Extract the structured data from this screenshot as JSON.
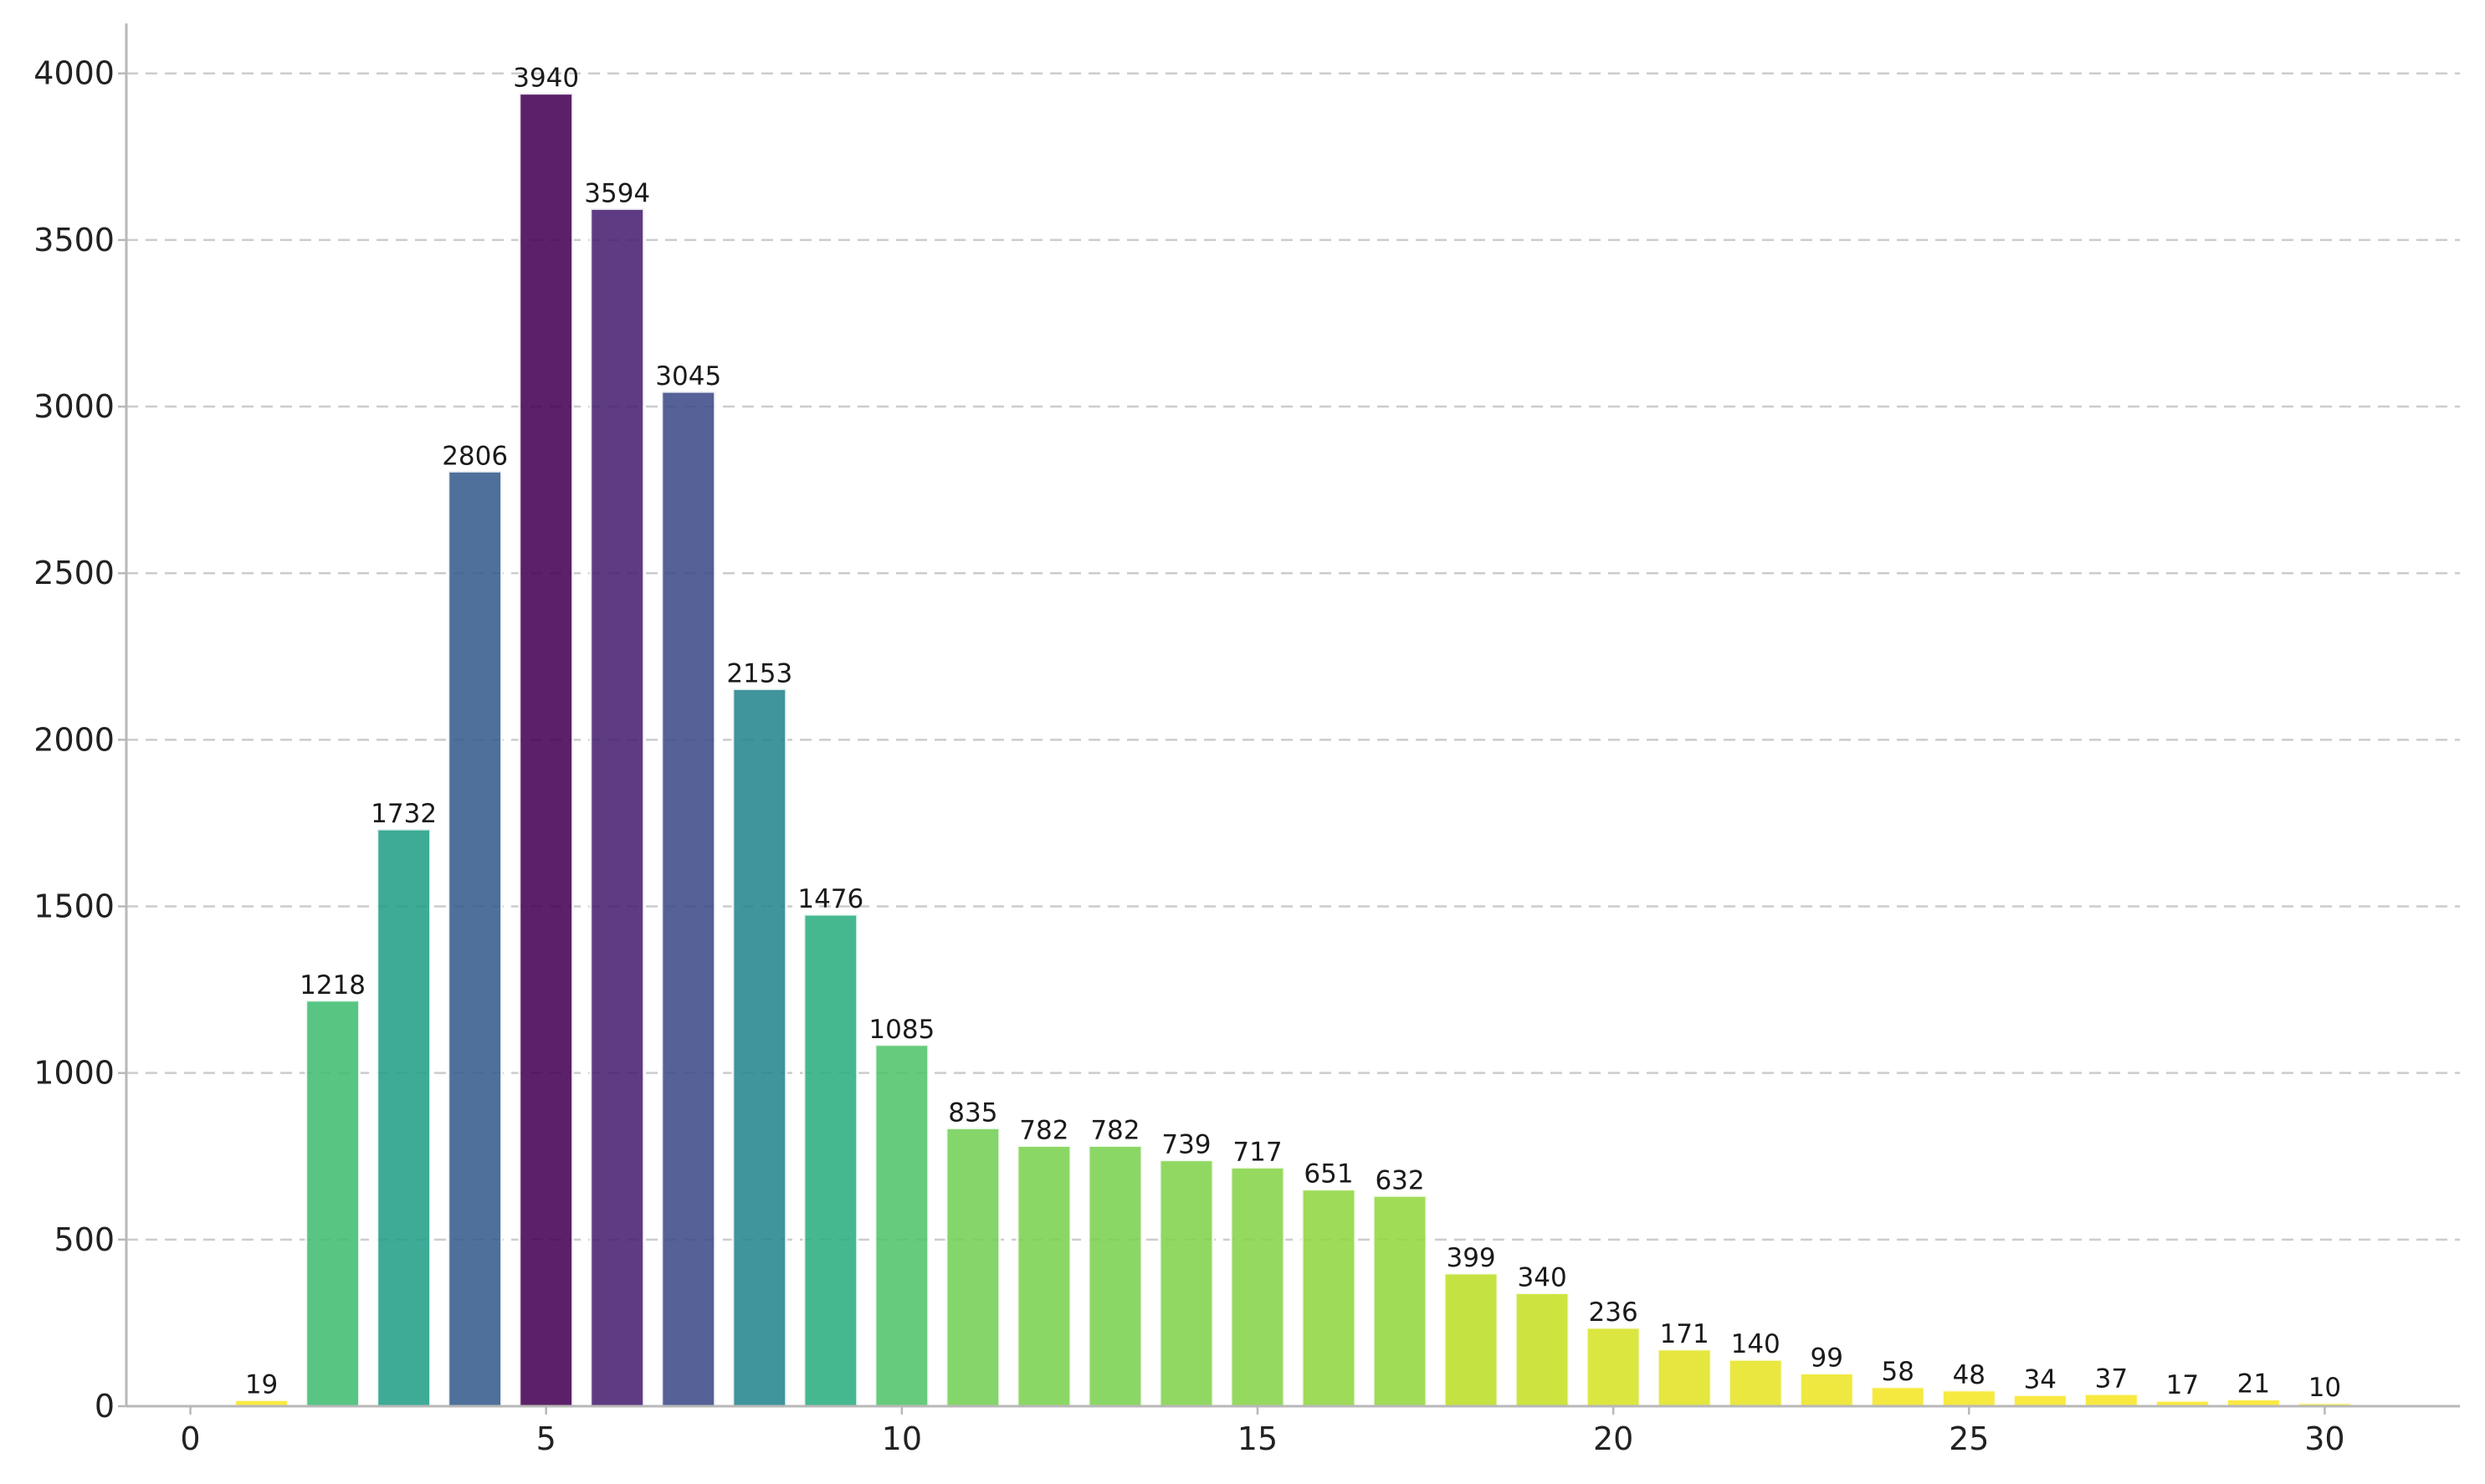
{
  "chart_data": {
    "type": "bar",
    "title": "",
    "xlabel": "",
    "ylabel": "",
    "x": [
      1,
      2,
      3,
      4,
      5,
      6,
      7,
      8,
      9,
      10,
      11,
      12,
      13,
      14,
      15,
      16,
      17,
      18,
      19,
      20,
      21,
      22,
      23,
      24,
      25,
      26,
      27,
      28,
      29,
      30
    ],
    "values": [
      19,
      1218,
      1732,
      2806,
      3940,
      3594,
      3045,
      2153,
      1476,
      1085,
      835,
      782,
      782,
      739,
      717,
      651,
      632,
      399,
      340,
      236,
      171,
      140,
      99,
      58,
      48,
      34,
      37,
      17,
      21,
      10
    ],
    "data_labels": [
      "19",
      "1218",
      "1732",
      "2806",
      "3940",
      "3594",
      "3045",
      "2153",
      "1476",
      "1085",
      "835",
      "782",
      "782",
      "739",
      "717",
      "651",
      "632",
      "399",
      "340",
      "236",
      "171",
      "140",
      "99",
      "58",
      "48",
      "34",
      "37",
      "17",
      "21",
      "10"
    ],
    "xlim": [
      -0.9,
      31.9
    ],
    "ylim": [
      0,
      4150
    ],
    "xticks": [
      0,
      5,
      10,
      15,
      20,
      25,
      30
    ],
    "xtick_labels": [
      "0",
      "5",
      "10",
      "15",
      "20",
      "25",
      "30"
    ],
    "yticks": [
      0,
      500,
      1000,
      1500,
      2000,
      2500,
      3000,
      3500,
      4000
    ],
    "ytick_labels": [
      "0",
      "500",
      "1000",
      "1500",
      "2000",
      "2500",
      "3000",
      "3500",
      "4000"
    ],
    "grid": "y-dashed",
    "legend": "none",
    "colormap": "viridis (reversed, by value)",
    "colors": {
      "grid": "#cccccc",
      "axis": "#b8b8b8",
      "text": "#222222"
    }
  }
}
